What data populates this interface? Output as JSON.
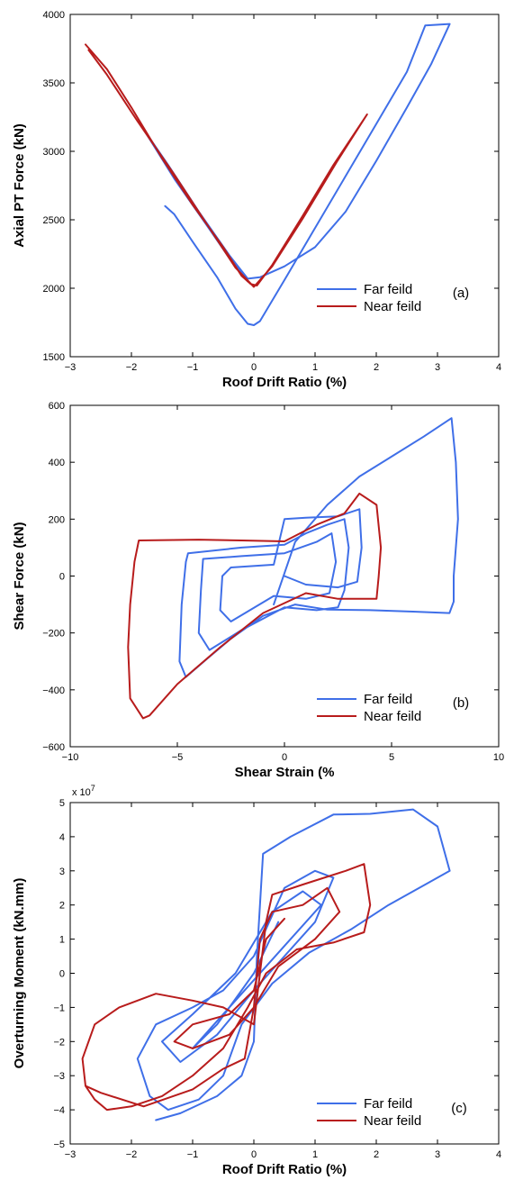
{
  "figure": {
    "colors": {
      "far": "#3f6fe8",
      "near": "#b81c1c",
      "axis": "#000000"
    }
  },
  "chart_data": [
    {
      "type": "line",
      "panel_label": "(a)",
      "xlabel": "Roof Drift Ratio (%)",
      "ylabel": "Axial PT Force (kN)",
      "xlim": [
        -3,
        4
      ],
      "ylim": [
        1500,
        4000
      ],
      "xticks": [
        -3,
        -2,
        -1,
        0,
        1,
        2,
        3,
        4
      ],
      "yticks": [
        1500,
        2000,
        2500,
        3000,
        3500,
        4000
      ],
      "xtick_labels": [
        "−3",
        "−2",
        "−1",
        "0",
        "1",
        "2",
        "3",
        "4"
      ],
      "ytick_labels": [
        "1500",
        "2000",
        "2500",
        "3000",
        "3500",
        "4000"
      ],
      "legend": {
        "position": "lower-right",
        "entries": [
          "Far feild",
          "Near feild"
        ]
      },
      "series": [
        {
          "name": "Far feild",
          "color": "#3f6fe8",
          "points": [
            [
              -1.45,
              2600
            ],
            [
              -1.3,
              2540
            ],
            [
              -1.0,
              2340
            ],
            [
              -0.6,
              2080
            ],
            [
              -0.3,
              1850
            ],
            [
              -0.1,
              1740
            ],
            [
              0.0,
              1730
            ],
            [
              0.1,
              1760
            ],
            [
              0.5,
              2060
            ],
            [
              1.0,
              2440
            ],
            [
              1.5,
              2820
            ],
            [
              2.0,
              3200
            ],
            [
              2.5,
              3580
            ],
            [
              2.8,
              3920
            ],
            [
              3.2,
              3930
            ],
            [
              2.9,
              3640
            ],
            [
              2.5,
              3320
            ],
            [
              2.0,
              2930
            ],
            [
              1.5,
              2560
            ],
            [
              1.0,
              2300
            ],
            [
              0.5,
              2160
            ],
            [
              0.1,
              2080
            ],
            [
              -0.1,
              2070
            ],
            [
              -0.4,
              2240
            ],
            [
              -0.9,
              2560
            ],
            [
              -1.4,
              2900
            ],
            [
              -1.8,
              3160
            ],
            [
              -1.3,
              2800
            ],
            [
              -0.8,
              2480
            ],
            [
              -0.4,
              2220
            ],
            [
              -0.1,
              2050
            ]
          ]
        },
        {
          "name": "Near feild",
          "color": "#b81c1c",
          "points": [
            [
              -2.75,
              3780
            ],
            [
              -2.4,
              3600
            ],
            [
              -2.0,
              3320
            ],
            [
              -1.5,
              2950
            ],
            [
              -1.0,
              2610
            ],
            [
              -0.5,
              2300
            ],
            [
              -0.2,
              2090
            ],
            [
              -0.05,
              2030
            ],
            [
              0.05,
              2020
            ],
            [
              0.3,
              2170
            ],
            [
              0.8,
              2530
            ],
            [
              1.3,
              2900
            ],
            [
              1.85,
              3270
            ],
            [
              1.35,
              2920
            ],
            [
              0.8,
              2510
            ],
            [
              0.3,
              2160
            ],
            [
              0.0,
              2010
            ],
            [
              -0.3,
              2150
            ],
            [
              -0.8,
              2490
            ],
            [
              -1.3,
              2830
            ],
            [
              -1.9,
              3220
            ],
            [
              -2.4,
              3560
            ],
            [
              -2.7,
              3740
            ]
          ]
        }
      ]
    },
    {
      "type": "line",
      "panel_label": "(b)",
      "xlabel": "Shear Strain (%",
      "ylabel": "Shear Force (kN)",
      "xlim": [
        -10,
        10
      ],
      "ylim": [
        -600,
        600
      ],
      "xticks": [
        -10,
        -5,
        0,
        5,
        10
      ],
      "yticks": [
        -600,
        -400,
        -200,
        0,
        200,
        400,
        600
      ],
      "xtick_labels": [
        "−10",
        "−5",
        "0",
        "5",
        "10"
      ],
      "ytick_labels": [
        "−600",
        "−400",
        "−200",
        "0",
        "200",
        "400",
        "600"
      ],
      "legend": {
        "position": "lower-right",
        "entries": [
          "Far feild",
          "Near feild"
        ]
      },
      "series": [
        {
          "name": "Far feild",
          "color": "#3f6fe8",
          "points": [
            [
              -0.5,
              -100
            ],
            [
              0.5,
              120
            ],
            [
              2.0,
              250
            ],
            [
              3.5,
              350
            ],
            [
              5.0,
              420
            ],
            [
              6.5,
              490
            ],
            [
              7.8,
              555
            ],
            [
              8.0,
              400
            ],
            [
              8.1,
              200
            ],
            [
              7.9,
              0
            ],
            [
              7.9,
              -90
            ],
            [
              7.7,
              -130
            ],
            [
              6.0,
              -125
            ],
            [
              4.0,
              -120
            ],
            [
              2.0,
              -118
            ],
            [
              0.5,
              -100
            ],
            [
              -1.0,
              -140
            ],
            [
              -2.5,
              -220
            ],
            [
              -3.6,
              -290
            ],
            [
              -4.6,
              -355
            ],
            [
              -4.9,
              -300
            ],
            [
              -4.8,
              -100
            ],
            [
              -4.6,
              50
            ],
            [
              -4.5,
              80
            ],
            [
              -2.0,
              100
            ],
            [
              0.0,
              110
            ],
            [
              1.0,
              150
            ],
            [
              2.0,
              180
            ],
            [
              2.8,
              200
            ],
            [
              3.0,
              100
            ],
            [
              2.8,
              -50
            ],
            [
              2.5,
              -110
            ],
            [
              1.5,
              -120
            ],
            [
              0.0,
              -110
            ],
            [
              -2.0,
              -190
            ],
            [
              -3.5,
              -260
            ],
            [
              -4.0,
              -200
            ],
            [
              -3.9,
              -50
            ],
            [
              -3.8,
              60
            ],
            [
              -2.0,
              70
            ],
            [
              0.0,
              80
            ],
            [
              1.5,
              120
            ],
            [
              2.2,
              150
            ],
            [
              2.4,
              50
            ],
            [
              2.1,
              -60
            ],
            [
              1.0,
              -80
            ],
            [
              -0.5,
              -70
            ],
            [
              -2.5,
              -160
            ],
            [
              -3.0,
              -120
            ],
            [
              -2.9,
              0
            ],
            [
              -2.5,
              30
            ],
            [
              -0.5,
              40
            ],
            [
              0.0,
              200
            ],
            [
              1.0,
              205
            ],
            [
              2.5,
              210
            ],
            [
              3.5,
              235
            ],
            [
              3.6,
              100
            ],
            [
              3.4,
              -20
            ],
            [
              2.5,
              -40
            ],
            [
              1.0,
              -30
            ],
            [
              0.0,
              0
            ]
          ]
        },
        {
          "name": "Near feild",
          "color": "#b81c1c",
          "points": [
            [
              -6.6,
              -500
            ],
            [
              -7.2,
              -430
            ],
            [
              -7.3,
              -250
            ],
            [
              -7.2,
              -100
            ],
            [
              -7.0,
              50
            ],
            [
              -6.8,
              125
            ],
            [
              -4.0,
              128
            ],
            [
              -2.0,
              125
            ],
            [
              0.0,
              122
            ],
            [
              1.5,
              180
            ],
            [
              2.8,
              220
            ],
            [
              3.5,
              290
            ],
            [
              4.3,
              250
            ],
            [
              4.5,
              100
            ],
            [
              4.4,
              0
            ],
            [
              4.3,
              -80
            ],
            [
              2.5,
              -80
            ],
            [
              1.0,
              -60
            ],
            [
              -1.0,
              -130
            ],
            [
              -3.0,
              -250
            ],
            [
              -5.0,
              -380
            ],
            [
              -6.3,
              -490
            ],
            [
              -6.6,
              -500
            ]
          ]
        }
      ]
    },
    {
      "type": "line",
      "panel_label": "(c)",
      "xlabel": "Roof Drift Ratio (%)",
      "ylabel": "Overturning Moment (kN.mm)",
      "multiplier_base": "x 10",
      "multiplier_exp": "7",
      "xlim": [
        -3,
        4
      ],
      "ylim": [
        -5,
        5
      ],
      "xticks": [
        -3,
        -2,
        -1,
        0,
        1,
        2,
        3,
        4
      ],
      "yticks": [
        -5,
        -4,
        -3,
        -2,
        -1,
        0,
        1,
        2,
        3,
        4,
        5
      ],
      "xtick_labels": [
        "−3",
        "−2",
        "−1",
        "0",
        "1",
        "2",
        "3",
        "4"
      ],
      "ytick_labels": [
        "−5",
        "−4",
        "−3",
        "−2",
        "−1",
        "0",
        "1",
        "2",
        "3",
        "4",
        "5"
      ],
      "legend": {
        "position": "lower-right",
        "entries": [
          "Far feild",
          "Near feild"
        ]
      },
      "series": [
        {
          "name": "Far feild",
          "color": "#3f6fe8",
          "points": [
            [
              -1.6,
              -4.3
            ],
            [
              -1.2,
              -4.1
            ],
            [
              -0.6,
              -3.6
            ],
            [
              -0.2,
              -3.0
            ],
            [
              0.0,
              -2.0
            ],
            [
              0.05,
              0.5
            ],
            [
              0.1,
              2.0
            ],
            [
              0.15,
              3.5
            ],
            [
              0.6,
              4.0
            ],
            [
              1.3,
              4.65
            ],
            [
              1.9,
              4.67
            ],
            [
              2.6,
              4.8
            ],
            [
              3.0,
              4.3
            ],
            [
              3.2,
              3.0
            ],
            [
              2.8,
              2.6
            ],
            [
              2.2,
              2.0
            ],
            [
              1.6,
              1.3
            ],
            [
              0.9,
              0.6
            ],
            [
              0.3,
              -0.3
            ],
            [
              -0.2,
              -1.5
            ],
            [
              -0.5,
              -3.0
            ],
            [
              -0.9,
              -3.7
            ],
            [
              -1.4,
              -4.0
            ],
            [
              -1.7,
              -3.6
            ],
            [
              -1.9,
              -2.5
            ],
            [
              -1.6,
              -1.5
            ],
            [
              -1.0,
              -1.0
            ],
            [
              -0.5,
              -0.5
            ],
            [
              0.0,
              0.5
            ],
            [
              0.5,
              2.5
            ],
            [
              1.0,
              3.0
            ],
            [
              1.3,
              2.8
            ],
            [
              1.0,
              1.5
            ],
            [
              0.5,
              0.5
            ],
            [
              0.0,
              -0.5
            ],
            [
              -0.6,
              -1.8
            ],
            [
              -1.2,
              -2.6
            ],
            [
              -1.5,
              -2.0
            ],
            [
              -1.0,
              -1.2
            ],
            [
              -0.3,
              0.0
            ],
            [
              0.3,
              1.8
            ],
            [
              0.8,
              2.4
            ],
            [
              1.1,
              2.0
            ],
            [
              0.6,
              1.0
            ],
            [
              0.0,
              -0.2
            ],
            [
              -0.7,
              -1.6
            ],
            [
              -1.0,
              -2.2
            ],
            [
              -0.6,
              -1.5
            ],
            [
              0.0,
              0.0
            ],
            [
              0.4,
              1.5
            ]
          ]
        },
        {
          "name": "Near feild",
          "color": "#b81c1c",
          "points": [
            [
              -2.75,
              -3.3
            ],
            [
              -2.8,
              -2.5
            ],
            [
              -2.6,
              -1.5
            ],
            [
              -2.2,
              -1.0
            ],
            [
              -1.6,
              -0.6
            ],
            [
              -1.0,
              -0.8
            ],
            [
              -0.5,
              -1.0
            ],
            [
              -0.2,
              -1.3
            ],
            [
              0.0,
              -1.5
            ],
            [
              0.1,
              0.0
            ],
            [
              0.2,
              1.5
            ],
            [
              0.3,
              2.3
            ],
            [
              0.8,
              2.6
            ],
            [
              1.5,
              3.0
            ],
            [
              1.8,
              3.2
            ],
            [
              1.9,
              2.0
            ],
            [
              1.8,
              1.2
            ],
            [
              1.3,
              0.9
            ],
            [
              0.7,
              0.7
            ],
            [
              0.2,
              0.0
            ],
            [
              -0.1,
              -1.0
            ],
            [
              -0.5,
              -2.2
            ],
            [
              -1.0,
              -3.0
            ],
            [
              -1.5,
              -3.6
            ],
            [
              -2.0,
              -3.9
            ],
            [
              -2.4,
              -4.0
            ],
            [
              -2.6,
              -3.7
            ],
            [
              -2.75,
              -3.3
            ],
            [
              -2.5,
              -3.5
            ],
            [
              -1.8,
              -3.9
            ],
            [
              -1.0,
              -3.4
            ],
            [
              -0.5,
              -2.8
            ],
            [
              -0.15,
              -2.5
            ],
            [
              0.0,
              -1.0
            ],
            [
              0.1,
              1.0
            ],
            [
              0.3,
              1.8
            ],
            [
              0.8,
              2.0
            ],
            [
              1.2,
              2.5
            ],
            [
              1.4,
              1.8
            ],
            [
              1.0,
              1.0
            ],
            [
              0.4,
              0.2
            ],
            [
              0.0,
              -1.0
            ],
            [
              -0.4,
              -1.8
            ],
            [
              -1.0,
              -2.2
            ],
            [
              -1.3,
              -2.0
            ],
            [
              -1.0,
              -1.5
            ],
            [
              -0.4,
              -1.2
            ],
            [
              0.0,
              -0.5
            ],
            [
              0.2,
              1.0
            ],
            [
              0.5,
              1.6
            ]
          ]
        }
      ]
    }
  ]
}
